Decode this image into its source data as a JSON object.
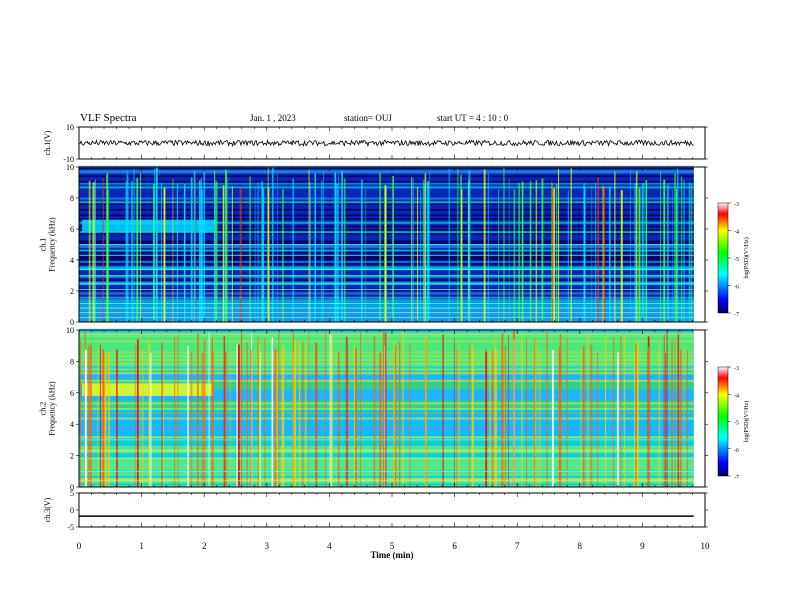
{
  "header": {
    "title": "VLF Spectra",
    "date": "Jan. 1 , 2023",
    "station": "station= OUJ",
    "start": "start UT = 4 : 10 : 0"
  },
  "chart_data": [
    {
      "type": "line",
      "panel": "ch1-waveform",
      "ylabel": "ch.1(V)",
      "ylim": [
        -10,
        10
      ],
      "yticks": [
        "10",
        "-10"
      ],
      "x": [
        0,
        1,
        2,
        3,
        4,
        5,
        6,
        7,
        8,
        9,
        9.82
      ],
      "series": [
        {
          "values": [
            0,
            0,
            0,
            0,
            0,
            0,
            0,
            0,
            0,
            0,
            0
          ]
        }
      ]
    },
    {
      "type": "heatmap",
      "panel": "ch1-spectrogram",
      "ylabel": "ch.1\nFrequency (kHz)",
      "ylim": [
        0,
        10
      ],
      "yticks": [
        "0",
        "2",
        "4",
        "6",
        "8",
        "10"
      ],
      "xlim": [
        0,
        10
      ],
      "colorbar": {
        "label": "log(PSD)(V²/Hz)",
        "range": [
          -7,
          -3
        ],
        "ticks": [
          "-3",
          "-4",
          "-5",
          "-6",
          "-7"
        ]
      },
      "colors": {
        "low": "#00006e",
        "mid": "#00d8ff",
        "high": "#ff0000"
      }
    },
    {
      "type": "heatmap",
      "panel": "ch2-spectrogram",
      "ylabel": "ch.2\nFrequency (kHz)",
      "ylim": [
        0,
        10
      ],
      "yticks": [
        "0",
        "2",
        "4",
        "6",
        "8",
        "10"
      ],
      "xlim": [
        0,
        10
      ],
      "colorbar": {
        "label": "log(PSD)(V²/Hz)",
        "range": [
          -7,
          -3
        ],
        "ticks": [
          "-3",
          "-4",
          "-5",
          "-6",
          "-7"
        ]
      }
    },
    {
      "type": "line",
      "panel": "ch3-waveform",
      "ylabel": "ch.3(V)",
      "ylim": [
        -5,
        5
      ],
      "yticks": [
        "5",
        "0",
        "-5"
      ],
      "x": [
        0,
        9.82
      ],
      "series": [
        {
          "values": [
            -1.8,
            -1.8
          ]
        }
      ]
    }
  ],
  "xaxis": {
    "label": "Time (min)",
    "ticks": [
      "0",
      "1",
      "2",
      "3",
      "4",
      "5",
      "6",
      "7",
      "8",
      "9",
      "10"
    ]
  }
}
